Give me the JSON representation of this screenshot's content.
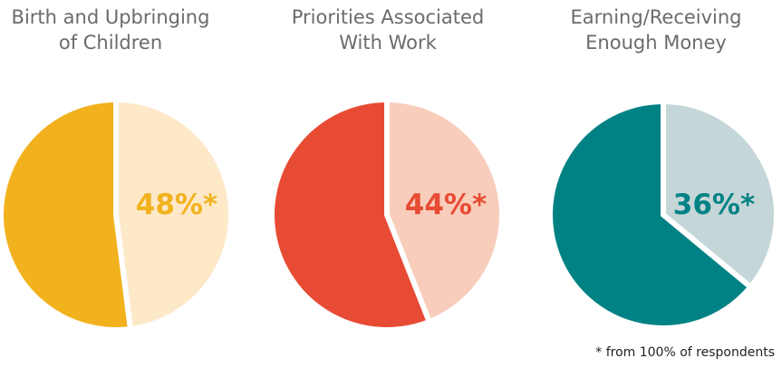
{
  "chart_data": [
    {
      "type": "pie",
      "title_lines": [
        "Birth and Upbringing",
        "of Children"
      ],
      "highlight_label": "48%*",
      "slices": [
        {
          "value": 48,
          "color": "#FDE8C8"
        },
        {
          "value": 52,
          "color": "#F2B21E"
        }
      ],
      "label_color": "#F2B21E"
    },
    {
      "type": "pie",
      "title_lines": [
        "Priorities Associated",
        "With Work"
      ],
      "highlight_label": "44%*",
      "slices": [
        {
          "value": 44,
          "color": "#F8CDBB"
        },
        {
          "value": 56,
          "color": "#E84B33"
        }
      ],
      "label_color": "#E84B33"
    },
    {
      "type": "pie",
      "title_lines": [
        "Earning/Receiving",
        "Enough Money"
      ],
      "highlight_label": "36%*",
      "slices": [
        {
          "value": 36,
          "color": "#C5D6D8"
        },
        {
          "value": 64,
          "color": "#008285"
        }
      ],
      "label_color": "#008285"
    }
  ],
  "footnote": "* from 100% of respondents"
}
